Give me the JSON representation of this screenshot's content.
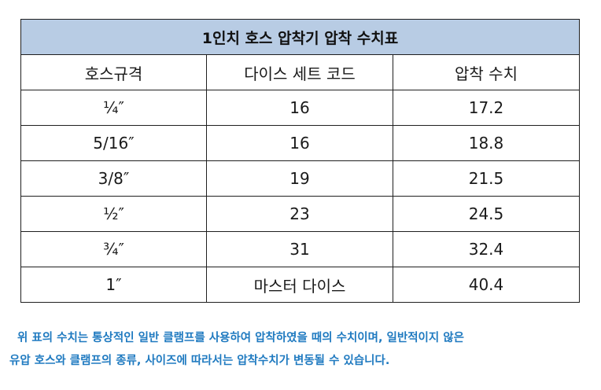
{
  "table": {
    "title": "1인치 호스 압착기 압착 수치표",
    "headers": [
      "호스규격",
      "다이스 세트 코드",
      "압착 수치"
    ],
    "rows": [
      {
        "spec": "¼″",
        "die_code": "16",
        "value": "17.2"
      },
      {
        "spec": "5/16″",
        "die_code": "16",
        "value": "18.8"
      },
      {
        "spec": "3/8″",
        "die_code": "19",
        "value": "21.5"
      },
      {
        "spec": "½″",
        "die_code": "23",
        "value": "24.5"
      },
      {
        "spec": "¾″",
        "die_code": "31",
        "value": "32.4"
      },
      {
        "spec": "1″",
        "die_code": "마스터 다이스",
        "value": "40.4"
      }
    ]
  },
  "note": {
    "line1": "위 표의 수치는 통상적인 일반 클램프를 사용하여 압착하였을 때의 수치이며, 일반적이지 않은",
    "line2": "유압 호스와 클램프의 종류, 사이즈에 따라서는 압착수치가 변동될 수 있습니다."
  },
  "colors": {
    "title_background": "#b8cce4",
    "note_text": "#1f7ac0",
    "border": "#1f1f1f"
  }
}
